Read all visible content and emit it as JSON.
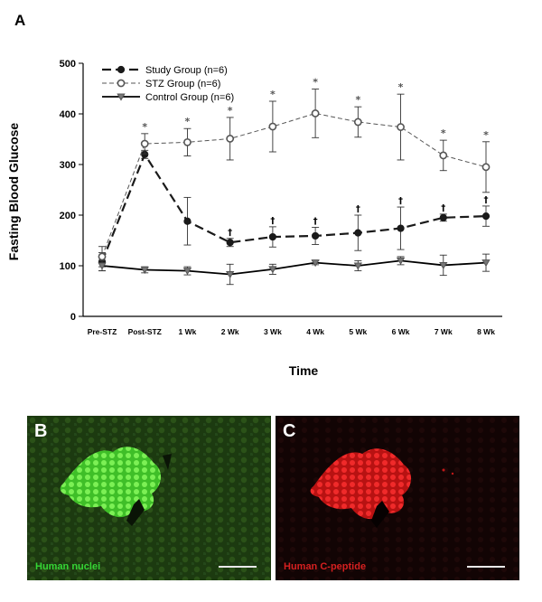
{
  "panel_a_letter": "A",
  "chart_data": {
    "type": "line",
    "xlabel": "Time",
    "ylabel": "Fasting Blood Glucose",
    "categories": [
      "Pre-STZ",
      "Post-STZ",
      "1 Wk",
      "2 Wk",
      "3 Wk",
      "4 Wk",
      "5 Wk",
      "6 Wk",
      "7 Wk",
      "8 Wk"
    ],
    "ylim": [
      0,
      500
    ],
    "yticks": [
      "0",
      "100",
      "200",
      "300",
      "400",
      "500"
    ],
    "legend_position": "top-left",
    "grid": false,
    "series": [
      {
        "name": "Study Group  (n=6)",
        "style": "long-dash",
        "marker": "filled-circle",
        "color": "#1a1a1a",
        "values": [
          108,
          320,
          188,
          146,
          157,
          159,
          165,
          174,
          195,
          198
        ],
        "errors": [
          18,
          8,
          47,
          8,
          20,
          17,
          35,
          42,
          7,
          20
        ],
        "marks": [
          "",
          "",
          "",
          "†",
          "†",
          "†",
          "†",
          "†",
          "†",
          "†"
        ]
      },
      {
        "name": "STZ Group  (n=6)",
        "style": "short-dash",
        "marker": "open-circle",
        "color": "#555555",
        "values": [
          118,
          341,
          344,
          351,
          375,
          401,
          384,
          374,
          318,
          295
        ],
        "errors": [
          20,
          20,
          27,
          42,
          50,
          48,
          30,
          65,
          30,
          50
        ],
        "marks": [
          "",
          "*",
          "*",
          "*",
          "*",
          "*",
          "*",
          "*",
          "*",
          "*"
        ]
      },
      {
        "name": "Control Group (n=6)",
        "style": "solid",
        "marker": "filled-triangle-down",
        "color": "#000000",
        "values": [
          100,
          92,
          90,
          83,
          93,
          106,
          100,
          110,
          101,
          106
        ],
        "errors": [
          10,
          6,
          8,
          20,
          10,
          4,
          10,
          8,
          20,
          17
        ],
        "marks": [
          "",
          "",
          "",
          "",
          "",
          "",
          "",
          "",
          "",
          ""
        ]
      }
    ]
  },
  "panel_b": {
    "letter": "B",
    "caption": "Human nuclei",
    "caption_color": "#35d635",
    "base_color": "#1c3a10",
    "blob_color": "#54e234"
  },
  "panel_c": {
    "letter": "C",
    "caption": "Human C-peptide",
    "caption_color": "#d62020",
    "base_color": "#120404",
    "blob_color": "#e01a1a"
  }
}
